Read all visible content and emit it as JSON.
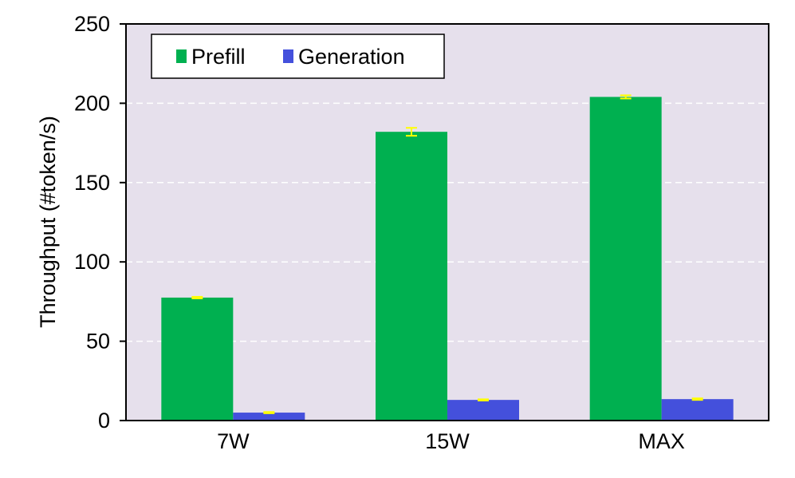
{
  "chart_data": {
    "type": "bar",
    "title": "",
    "xlabel": "",
    "ylabel": "Throughput (#token/s)",
    "categories": [
      "7W",
      "15W",
      "MAX"
    ],
    "ylim": [
      0,
      250
    ],
    "yticks": [
      0,
      50,
      100,
      150,
      200,
      250
    ],
    "grid": true,
    "legend_position": "top-left",
    "series": [
      {
        "name": "Prefill",
        "values": [
          77.5,
          182.0,
          204.0
        ],
        "errors": [
          0.5,
          2.5,
          1.0
        ],
        "color": "#00b050"
      },
      {
        "name": "Generation",
        "values": [
          5.0,
          13.0,
          13.5
        ],
        "errors": [
          0.4,
          0.4,
          0.5
        ],
        "color": "#4450dc"
      }
    ],
    "error_bar_color": "#ffff00",
    "plot_background": "#e6e0ec"
  }
}
